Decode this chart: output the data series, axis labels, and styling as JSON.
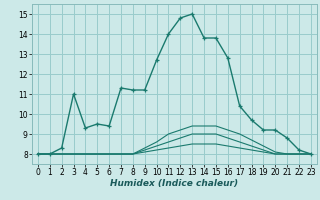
{
  "xlabel": "Humidex (Indice chaleur)",
  "x": [
    0,
    1,
    2,
    3,
    4,
    5,
    6,
    7,
    8,
    9,
    10,
    11,
    12,
    13,
    14,
    15,
    16,
    17,
    18,
    19,
    20,
    21,
    22,
    23
  ],
  "line1": [
    8,
    8,
    8.3,
    11,
    9.3,
    9.5,
    9.4,
    11.3,
    11.2,
    11.2,
    12.7,
    14,
    14.8,
    15,
    13.8,
    13.8,
    12.8,
    10.4,
    9.7,
    9.2,
    9.2,
    8.8,
    8.2,
    8
  ],
  "line2": [
    8,
    8,
    8,
    8,
    8,
    8,
    8,
    8,
    8,
    8.1,
    8.2,
    8.3,
    8.4,
    8.5,
    8.5,
    8.5,
    8.4,
    8.3,
    8.2,
    8.1,
    8,
    8,
    8,
    8
  ],
  "line3": [
    8,
    8,
    8,
    8,
    8,
    8,
    8,
    8,
    8,
    8.2,
    8.4,
    8.6,
    8.8,
    9.0,
    9.0,
    9.0,
    8.8,
    8.6,
    8.4,
    8.2,
    8,
    8,
    8,
    8
  ],
  "line4": [
    8,
    8,
    8,
    8,
    8,
    8,
    8,
    8,
    8,
    8.3,
    8.6,
    9.0,
    9.2,
    9.4,
    9.4,
    9.4,
    9.2,
    9.0,
    8.7,
    8.4,
    8.1,
    8,
    8,
    8
  ],
  "bg_color": "#cce9e8",
  "grid_color": "#99cccc",
  "line_color": "#1a7a6e",
  "ylim": [
    7.5,
    15.5
  ],
  "xlim": [
    -0.5,
    23.5
  ],
  "yticks": [
    8,
    9,
    10,
    11,
    12,
    13,
    14,
    15
  ],
  "xticks": [
    0,
    1,
    2,
    3,
    4,
    5,
    6,
    7,
    8,
    9,
    10,
    11,
    12,
    13,
    14,
    15,
    16,
    17,
    18,
    19,
    20,
    21,
    22,
    23
  ]
}
